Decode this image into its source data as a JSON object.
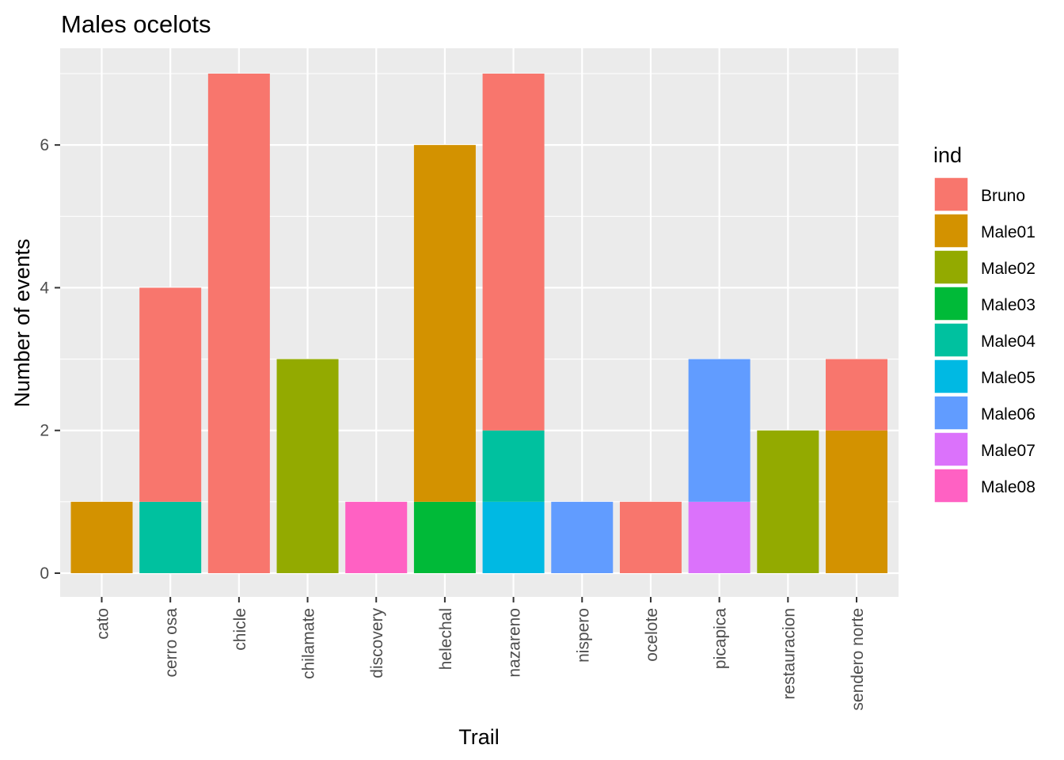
{
  "chart_data": {
    "type": "bar",
    "stacked": true,
    "title": "Males ocelots",
    "xlabel": "Trail",
    "ylabel": "Number of events",
    "ylim": [
      0,
      7
    ],
    "y_ticks": [
      0,
      2,
      4,
      6
    ],
    "categories": [
      "cato",
      "cerro osa",
      "chicle",
      "chilamate",
      "discovery",
      "helechal",
      "nazareno",
      "nispero",
      "ocelote",
      "picapica",
      "restauracion",
      "sendero norte"
    ],
    "legend_title": "ind",
    "legend_position": "right",
    "grid": true,
    "series": [
      {
        "name": "Bruno",
        "color": "#F8766D",
        "values": [
          0,
          3,
          7,
          0,
          0,
          0,
          5,
          0,
          1,
          0,
          0,
          1
        ]
      },
      {
        "name": "Male01",
        "color": "#D39200",
        "values": [
          1,
          0,
          0,
          0,
          0,
          5,
          0,
          0,
          0,
          0,
          0,
          2
        ]
      },
      {
        "name": "Male02",
        "color": "#93AA00",
        "values": [
          0,
          0,
          0,
          3,
          0,
          0,
          0,
          0,
          0,
          0,
          2,
          0
        ]
      },
      {
        "name": "Male03",
        "color": "#00BA38",
        "values": [
          0,
          0,
          0,
          0,
          0,
          1,
          0,
          0,
          0,
          0,
          0,
          0
        ]
      },
      {
        "name": "Male04",
        "color": "#00C19F",
        "values": [
          0,
          1,
          0,
          0,
          0,
          0,
          1,
          0,
          0,
          0,
          0,
          0
        ]
      },
      {
        "name": "Male05",
        "color": "#00B9E3",
        "values": [
          0,
          0,
          0,
          0,
          0,
          0,
          1,
          0,
          0,
          0,
          0,
          0
        ]
      },
      {
        "name": "Male06",
        "color": "#619CFF",
        "values": [
          0,
          0,
          0,
          0,
          0,
          0,
          0,
          1,
          0,
          2,
          0,
          0
        ]
      },
      {
        "name": "Male07",
        "color": "#DB72FB",
        "values": [
          0,
          0,
          0,
          0,
          0,
          0,
          0,
          0,
          0,
          1,
          0,
          0
        ]
      },
      {
        "name": "Male08",
        "color": "#FF61C3",
        "values": [
          0,
          0,
          0,
          0,
          1,
          0,
          0,
          0,
          0,
          0,
          0,
          0
        ]
      }
    ]
  }
}
